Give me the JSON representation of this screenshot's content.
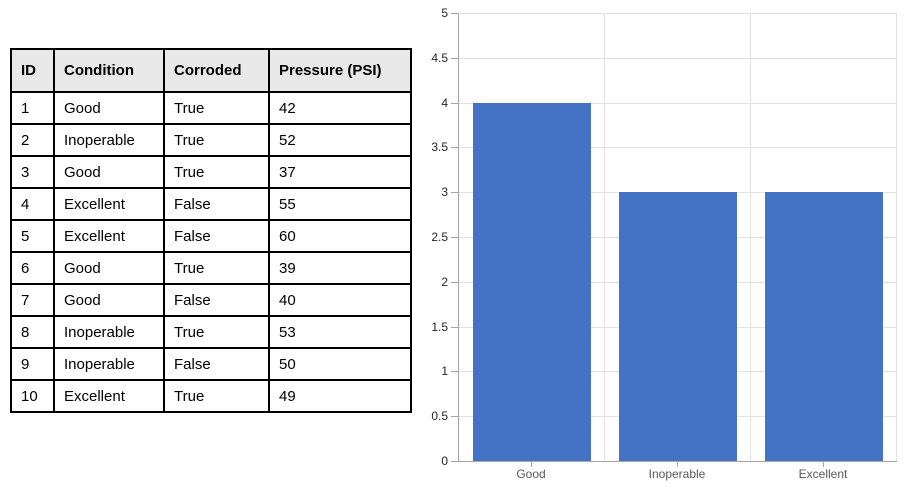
{
  "table": {
    "columns": [
      "ID",
      "Condition",
      "Corroded",
      "Pressure (PSI)"
    ],
    "rows": [
      [
        "1",
        "Good",
        "True",
        "42"
      ],
      [
        "2",
        "Inoperable",
        "True",
        "52"
      ],
      [
        "3",
        "Good",
        "True",
        "37"
      ],
      [
        "4",
        "Excellent",
        "False",
        "55"
      ],
      [
        "5",
        "Excellent",
        "False",
        "60"
      ],
      [
        "6",
        "Good",
        "True",
        "39"
      ],
      [
        "7",
        "Good",
        "False",
        "40"
      ],
      [
        "8",
        "Inoperable",
        "True",
        "53"
      ],
      [
        "9",
        "Inoperable",
        "False",
        "50"
      ],
      [
        "10",
        "Excellent",
        "True",
        "49"
      ]
    ]
  },
  "chart_data": {
    "type": "bar",
    "categories": [
      "Good",
      "Inoperable",
      "Excellent"
    ],
    "values": [
      4,
      3,
      3
    ],
    "title": "",
    "xlabel": "",
    "ylabel": "",
    "ylim": [
      0,
      5
    ],
    "ytick_step": 0.5,
    "grid": true,
    "legend": "none",
    "bar_color": "#4472C4",
    "gridline_color": "#E2E2E2",
    "axis_color": "#A6A6A6",
    "ytick_label_color": "#262626",
    "xtick_label_color": "#595959"
  },
  "colors": {
    "table_header_bg": "#E8E8E8",
    "table_border": "#000000",
    "background": "#FFFFFF"
  }
}
